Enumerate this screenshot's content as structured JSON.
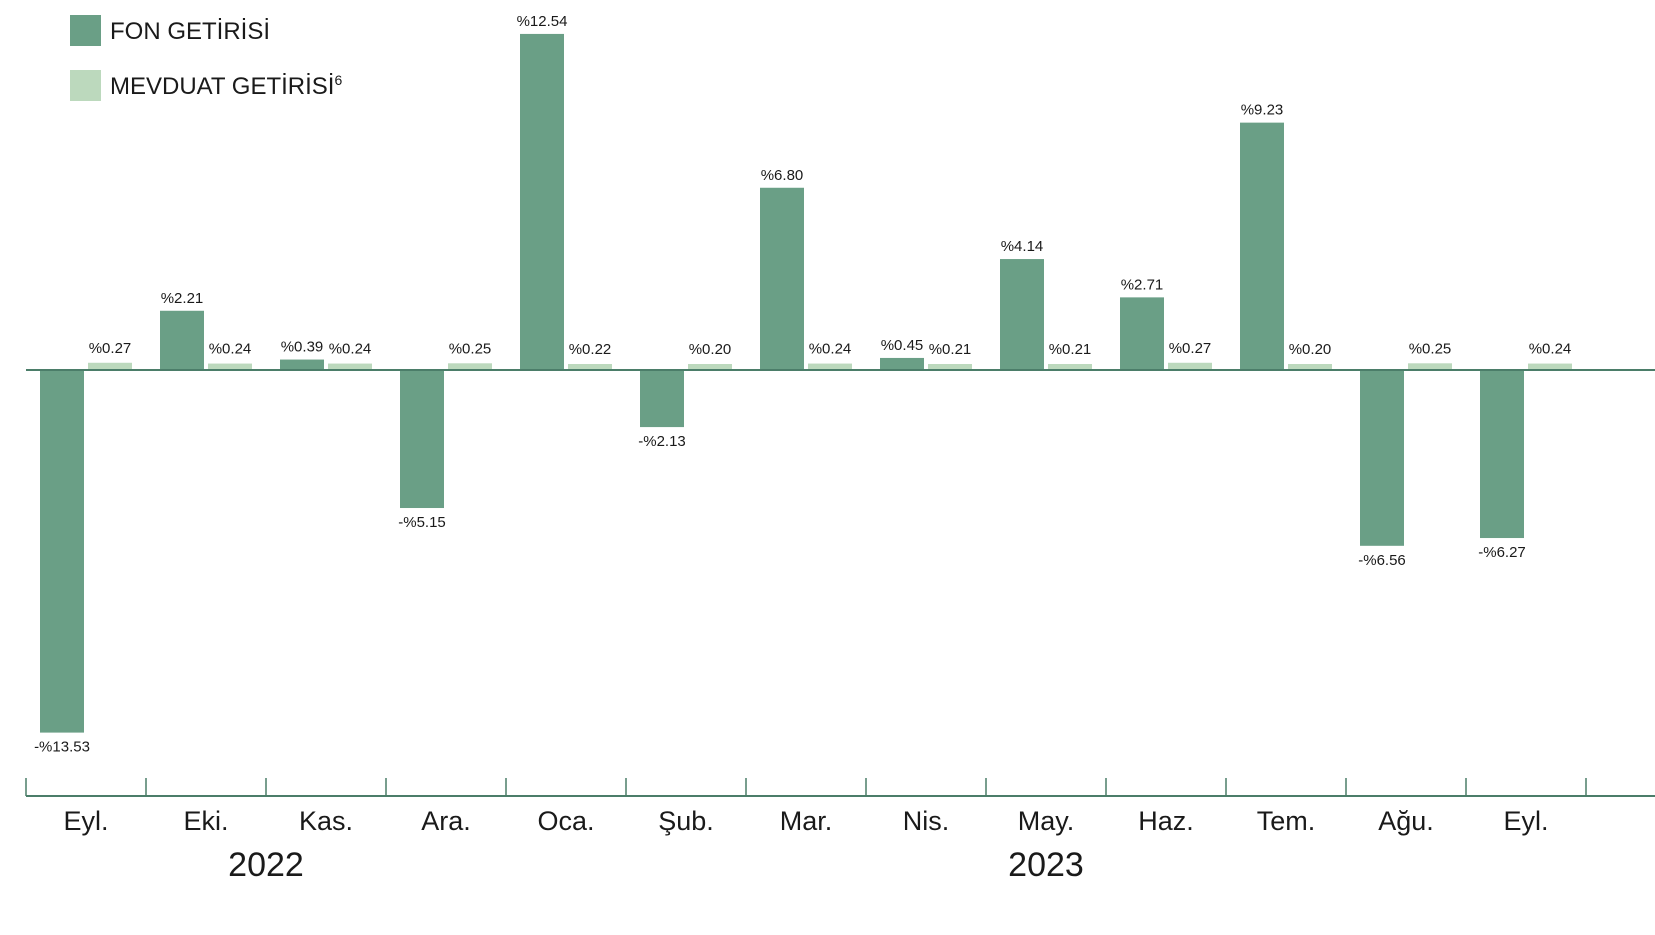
{
  "colors": {
    "fon": "#6a9f86",
    "mevduat": "#bcd9bd",
    "axis": "#4b7d69",
    "text": "#1a1a1a"
  },
  "chart_data": {
    "type": "bar",
    "legend_position": "top-left",
    "grid": false,
    "categories": [
      "Eyl.",
      "Eki.",
      "Kas.",
      "Ara.",
      "Oca.",
      "Şub.",
      "Mar.",
      "Nis.",
      "May.",
      "Haz.",
      "Tem.",
      "Ağu.",
      "Eyl."
    ],
    "year_groups": [
      {
        "label": "2022",
        "start_index": 0,
        "end_index": 3
      },
      {
        "label": "2023",
        "start_index": 4,
        "end_index": 12
      }
    ],
    "ylim": [
      -13.53,
      12.54
    ],
    "series": [
      {
        "name": "FON GETİRİSİ",
        "values": [
          -13.53,
          2.21,
          0.39,
          -5.15,
          12.54,
          -2.13,
          6.8,
          0.45,
          4.14,
          2.71,
          9.23,
          -6.56,
          -6.27
        ],
        "labels": [
          "-%13.53",
          "%2.21",
          "%0.39",
          "-%5.15",
          "%12.54",
          "-%2.13",
          "%6.80",
          "%0.45",
          "%4.14",
          "%2.71",
          "%9.23",
          "-%6.56",
          "-%6.27"
        ]
      },
      {
        "name": "MEVDUAT GETİRİSİ",
        "name_superscript": "6",
        "values": [
          0.27,
          0.24,
          0.24,
          0.25,
          0.22,
          0.2,
          0.24,
          0.21,
          0.21,
          0.27,
          0.2,
          0.25,
          0.24
        ],
        "labels": [
          "%0.27",
          "%0.24",
          "%0.24",
          "%0.25",
          "%0.22",
          "%0.20",
          "%0.24",
          "%0.21",
          "%0.21",
          "%0.27",
          "%0.20",
          "%0.25",
          "%0.24"
        ]
      }
    ]
  }
}
